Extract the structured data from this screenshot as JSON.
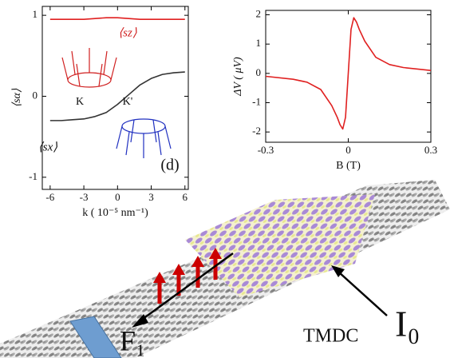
{
  "chart_data": [
    {
      "type": "line",
      "y_label": "⟨sα⟩",
      "x_label": "k ( 10⁻⁵ nm⁻¹)",
      "annotations": [
        "K",
        "K'",
        "(d)"
      ],
      "x": [
        -6,
        -5,
        -4,
        -3,
        -2,
        -1,
        0,
        1,
        2,
        3,
        4,
        5,
        6
      ],
      "series": [
        {
          "name": "⟨sz⟩",
          "color": "#e02020",
          "values": [
            0.95,
            0.95,
            0.95,
            0.95,
            0.96,
            0.97,
            0.97,
            0.96,
            0.95,
            0.95,
            0.95,
            0.95,
            0.95
          ]
        },
        {
          "name": "⟨sx⟩",
          "color": "#333333",
          "values": [
            -0.3,
            -0.3,
            -0.29,
            -0.28,
            -0.25,
            -0.2,
            -0.1,
            0.02,
            0.14,
            0.22,
            0.27,
            0.29,
            0.3
          ]
        }
      ],
      "xlim": [
        -6.7,
        6.3
      ],
      "ylim": [
        -1.15,
        1.11
      ],
      "xticks": [
        -6,
        -3,
        0,
        3,
        6
      ],
      "yticks": [
        -1,
        0,
        1
      ]
    },
    {
      "type": "line",
      "y_label": "ΔV ( μV)",
      "x_label": "B (T)",
      "x": [
        -0.3,
        -0.2,
        -0.15,
        -0.1,
        -0.06,
        -0.04,
        -0.03,
        -0.02,
        -0.01,
        0,
        0.01,
        0.02,
        0.03,
        0.04,
        0.06,
        0.1,
        0.15,
        0.2,
        0.3
      ],
      "series": [
        {
          "color": "#e02020",
          "values": [
            -0.1,
            -0.2,
            -0.3,
            -0.55,
            -1.1,
            -1.5,
            -1.75,
            -1.9,
            -1.5,
            0,
            1.5,
            1.9,
            1.75,
            1.5,
            1.1,
            0.55,
            0.3,
            0.2,
            0.1
          ]
        }
      ],
      "xlim": [
        -0.3,
        0.3
      ],
      "ylim": [
        -2.35,
        2.15
      ],
      "xticks": [
        -0.3,
        0,
        0.3
      ],
      "yticks": [
        -2,
        -1,
        0,
        1,
        2
      ]
    }
  ],
  "illustration": {
    "labels": [
      "TMDC",
      "I₀",
      "F₁"
    ]
  }
}
